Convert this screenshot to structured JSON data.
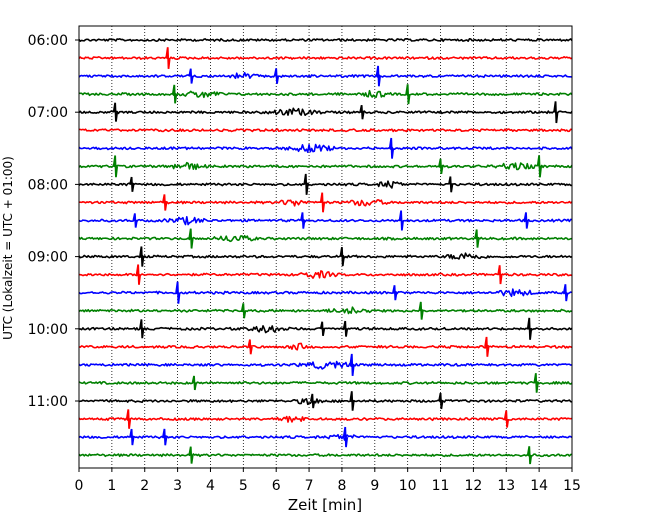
{
  "chart_data": {
    "type": "line",
    "xlabel": "Zeit  [min]",
    "ylabel": "UTC (Lokalzeit = UTC + 01:00)",
    "xlim": [
      0,
      15
    ],
    "x_ticks": [
      0,
      1,
      2,
      3,
      4,
      5,
      6,
      7,
      8,
      9,
      10,
      11,
      12,
      13,
      14,
      15
    ],
    "x_tick_labels": [
      "0",
      "1",
      "2",
      "3",
      "4",
      "5",
      "6",
      "7",
      "8",
      "9",
      "10",
      "11",
      "12",
      "13",
      "14",
      "15"
    ],
    "x_grid": true,
    "y_tick_labels": [
      "06:00",
      "07:00",
      "08:00",
      "09:00",
      "10:00",
      "11:00"
    ],
    "y_tick_rows": [
      0,
      4,
      8,
      12,
      16,
      20
    ],
    "row_colors": [
      "#000000",
      "#ff0000",
      "#0000ff",
      "#008000"
    ],
    "rows": [
      {
        "spikes": [],
        "bursts": []
      },
      {
        "spikes": [
          2.7
        ],
        "bursts": []
      },
      {
        "spikes": [
          3.4,
          6.0,
          9.1
        ],
        "bursts": [
          [
            4.5,
            5.5
          ]
        ]
      },
      {
        "spikes": [
          2.9,
          10.0
        ],
        "bursts": [
          [
            3.0,
            4.5
          ],
          [
            8.5,
            9.5
          ]
        ]
      },
      {
        "spikes": [
          1.1,
          8.6,
          14.5
        ],
        "bursts": [
          [
            5.5,
            7.5
          ]
        ]
      },
      {
        "spikes": [],
        "bursts": []
      },
      {
        "spikes": [
          9.5
        ],
        "bursts": [
          [
            6.0,
            8.0
          ]
        ]
      },
      {
        "spikes": [
          1.1,
          11.0,
          14.0
        ],
        "bursts": [
          [
            2.5,
            4.0
          ],
          [
            12.5,
            14.0
          ]
        ]
      },
      {
        "spikes": [
          1.6,
          6.9,
          11.3
        ],
        "bursts": [
          [
            9.0,
            10.0
          ]
        ]
      },
      {
        "spikes": [
          2.6,
          7.4
        ],
        "bursts": [
          [
            6.0,
            7.0
          ],
          [
            8.0,
            9.5
          ]
        ]
      },
      {
        "spikes": [
          1.7,
          6.8,
          9.8,
          13.6
        ],
        "bursts": [
          [
            2.5,
            4.0
          ]
        ]
      },
      {
        "spikes": [
          3.4,
          12.1
        ],
        "bursts": [
          [
            4.0,
            5.5
          ]
        ]
      },
      {
        "spikes": [
          1.9,
          8.0
        ],
        "bursts": [
          [
            11.0,
            12.5
          ]
        ]
      },
      {
        "spikes": [
          1.8,
          12.8
        ],
        "bursts": [
          [
            6.5,
            8.0
          ]
        ]
      },
      {
        "spikes": [
          3.0,
          9.6,
          14.8
        ],
        "bursts": [
          [
            12.5,
            14.0
          ]
        ]
      },
      {
        "spikes": [
          5.0,
          10.4
        ],
        "bursts": [
          [
            7.5,
            9.0
          ]
        ]
      },
      {
        "spikes": [
          1.9,
          7.4,
          8.1,
          13.7
        ],
        "bursts": [
          [
            5.0,
            6.5
          ]
        ]
      },
      {
        "spikes": [
          5.2,
          12.4
        ],
        "bursts": [
          [
            6.3,
            7.0
          ]
        ]
      },
      {
        "spikes": [
          8.3
        ],
        "bursts": [
          [
            6.5,
            8.5
          ]
        ]
      },
      {
        "spikes": [
          3.5,
          13.9
        ],
        "bursts": []
      },
      {
        "spikes": [
          7.1,
          8.3,
          11.0
        ],
        "bursts": [
          [
            6.5,
            7.5
          ]
        ]
      },
      {
        "spikes": [
          1.5,
          13.0
        ],
        "bursts": [
          [
            6.0,
            7.0
          ]
        ]
      },
      {
        "spikes": [
          1.6,
          2.6,
          8.1
        ],
        "bursts": [
          [
            7.5,
            8.5
          ]
        ]
      },
      {
        "spikes": [
          3.4,
          13.7
        ],
        "bursts": []
      }
    ]
  }
}
